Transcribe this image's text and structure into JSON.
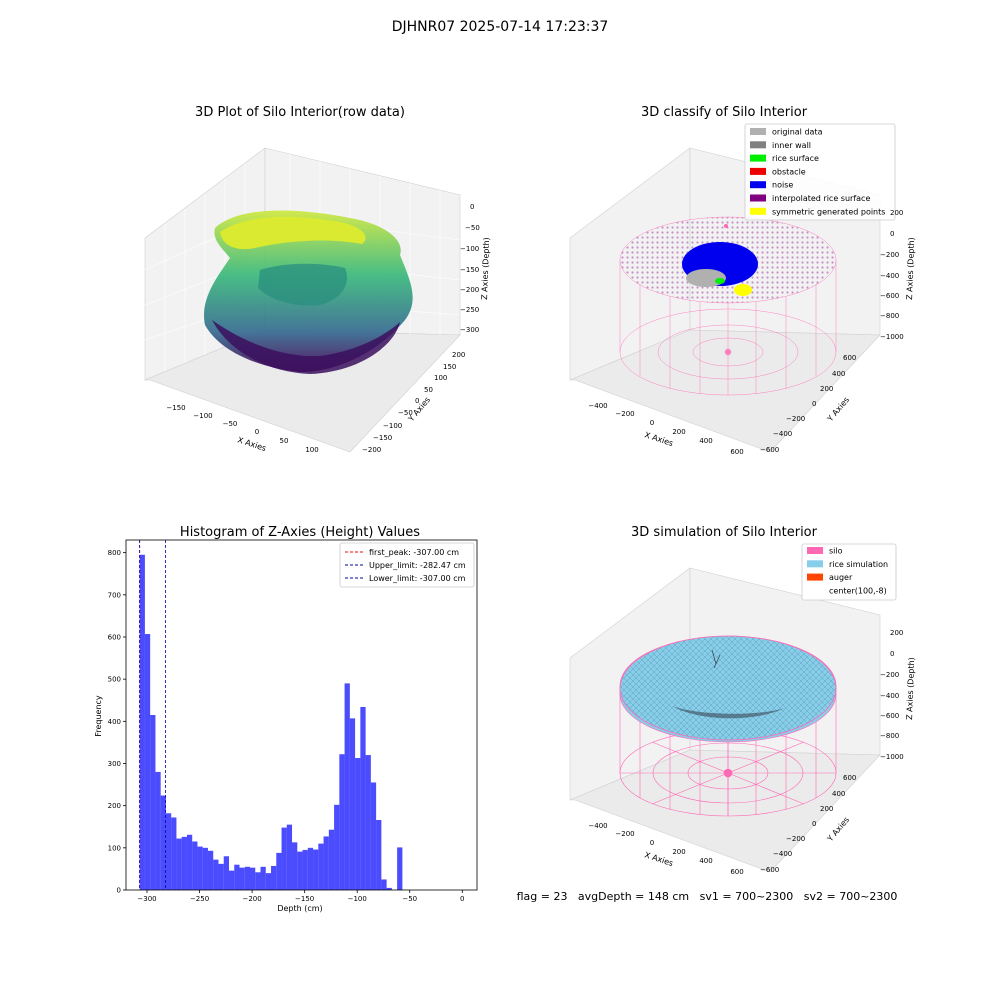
{
  "suptitle": "DJHNR07 2025-07-14 17:23:37",
  "panels": {
    "raw": {
      "title": "3D Plot of Silo Interior(row data)",
      "xlabel": "X Axies",
      "ylabel": "Y Axies",
      "zlabel": "Z Axies (Depth)",
      "xticks": [
        "−150",
        "−100",
        "−50",
        "0",
        "50",
        "100"
      ],
      "yticks": [
        "200",
        "150",
        "100",
        "50",
        "0",
        "−50",
        "−100",
        "−150",
        "−200"
      ],
      "zticks": [
        "0",
        "−50",
        "−100",
        "−150",
        "−200",
        "−250",
        "−300"
      ]
    },
    "classify": {
      "title": "3D classify of Silo Interior",
      "xlabel": "X Axies",
      "ylabel": "Y Axies",
      "zlabel": "Z Axies (Depth)",
      "xticks": [
        "−400",
        "−200",
        "0",
        "200",
        "400",
        "600"
      ],
      "yticks": [
        "600",
        "400",
        "200",
        "0",
        "−200",
        "−400",
        "−600"
      ],
      "zticks": [
        "200",
        "0",
        "−200",
        "−400",
        "−600",
        "−800",
        "−1000"
      ],
      "legend": [
        {
          "label": "original data",
          "color": "#b0b0b0"
        },
        {
          "label": "inner wall",
          "color": "#808080"
        },
        {
          "label": "rice surface",
          "color": "#00ee00"
        },
        {
          "label": "obstacle",
          "color": "#ee0000"
        },
        {
          "label": "noise",
          "color": "#0000ee"
        },
        {
          "label": "interpolated rice surface",
          "color": "#800080"
        },
        {
          "label": "symmetric generated points",
          "color": "#ffff00"
        }
      ]
    },
    "hist": {
      "title": "Histogram of Z-Axies (Height) Values",
      "xlabel": "Depth (cm)",
      "ylabel": "Frequency",
      "legend": [
        {
          "label": "first_peak: -307.00 cm",
          "color": "#ff0000"
        },
        {
          "label": "Upper_limit: -282.47 cm",
          "color": "#0000aa"
        },
        {
          "label": "Lower_limit: -307.00 cm",
          "color": "#0000aa"
        }
      ]
    },
    "sim": {
      "title": "3D simulation of Silo Interior",
      "xlabel": "X Axies",
      "ylabel": "Y Axies",
      "zlabel": "Z Axies (Depth)",
      "xticks": [
        "−400",
        "−200",
        "0",
        "200",
        "400",
        "600"
      ],
      "yticks": [
        "600",
        "400",
        "200",
        "0",
        "−200",
        "−400",
        "−600"
      ],
      "zticks": [
        "200",
        "0",
        "−200",
        "−400",
        "−600",
        "−800",
        "−1000"
      ],
      "legend": [
        {
          "label": "silo",
          "color": "#ff69b4"
        },
        {
          "label": "rice simulation",
          "color": "#87ceeb"
        },
        {
          "label": "auger",
          "color": "#ff4500"
        },
        {
          "label": "center(100,-8)",
          "color": ""
        }
      ]
    }
  },
  "status_line": "flag = 23   avgDepth = 148 cm   sv1 = 700~2300   sv2 = 700~2300",
  "chart_data": [
    {
      "type": "bar",
      "title": "Histogram of Z-Axies (Height) Values",
      "xlabel": "Depth (cm)",
      "ylabel": "Frequency",
      "xlim": [
        -320,
        14
      ],
      "ylim": [
        0,
        830
      ],
      "xticks": [
        -300,
        -250,
        -200,
        -150,
        -100,
        -50,
        0
      ],
      "yticks": [
        0,
        100,
        200,
        300,
        400,
        500,
        600,
        700,
        800
      ],
      "bin_start": -307,
      "bin_width": 5.0,
      "values": [
        795,
        607,
        415,
        280,
        224,
        182,
        172,
        122,
        126,
        131,
        115,
        103,
        100,
        93,
        72,
        62,
        80,
        46,
        60,
        53,
        55,
        53,
        42,
        55,
        40,
        57,
        88,
        148,
        155,
        113,
        91,
        95,
        100,
        96,
        110,
        127,
        143,
        202,
        322,
        490,
        407,
        313,
        434,
        320,
        255,
        166,
        25,
        5,
        0,
        101
      ],
      "vlines": [
        {
          "name": "first_peak: -307.00 cm",
          "x": -307.0,
          "color": "#ff0000"
        },
        {
          "name": "Upper_limit: -282.47 cm",
          "x": -282.47,
          "color": "#0000aa"
        },
        {
          "name": "Lower_limit: -307.00 cm",
          "x": -307.0,
          "color": "#0000aa"
        }
      ],
      "bar_color": "#0000ff",
      "legend_position": "top-right",
      "grid": false
    }
  ]
}
